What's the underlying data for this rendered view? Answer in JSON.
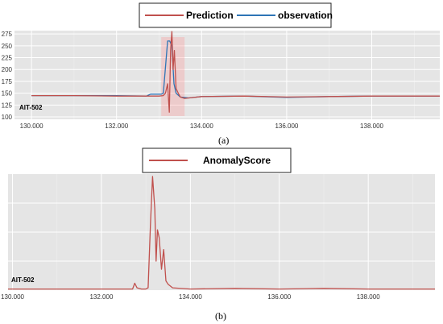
{
  "chart_data": [
    {
      "type": "line",
      "caption": "(a)",
      "sensor_label": "AIT-502",
      "legend": [
        "Prediction",
        "observation"
      ],
      "colors": {
        "Prediction": "#c0504d",
        "observation": "#2e75b6",
        "highlight": "#ff8a8a"
      },
      "xlim": [
        129600,
        139600
      ],
      "ylim": [
        95,
        282
      ],
      "xticks": [
        130000,
        132000,
        134000,
        136000,
        138000
      ],
      "xtick_labels": [
        "130.000",
        "132.000",
        "134.000",
        "136.000",
        "138.000"
      ],
      "yticks": [
        100,
        125,
        150,
        175,
        200,
        225,
        250,
        275
      ],
      "ytick_labels": [
        "100",
        "125",
        "150",
        "175",
        "200",
        "225",
        "250",
        "275"
      ],
      "grid": true,
      "legend_position": "top",
      "series": [
        {
          "name": "Prediction",
          "x": [
            130000,
            131000,
            132000,
            132700,
            133000,
            133100,
            133150,
            133200,
            133240,
            133270,
            133300,
            133330,
            133360,
            133400,
            133450,
            133500,
            133600,
            134000,
            135000,
            136000,
            137000,
            138000,
            139600
          ],
          "y": [
            145,
            145,
            144,
            144,
            144,
            145,
            150,
            170,
            110,
            240,
            280,
            200,
            240,
            160,
            150,
            142,
            139,
            143,
            144,
            142,
            143,
            144,
            144
          ]
        },
        {
          "name": "observation",
          "x": [
            130000,
            131000,
            132000,
            132700,
            132800,
            133000,
            133050,
            133100,
            133200,
            133250,
            133300,
            133350,
            133400,
            133500,
            133700,
            134000,
            135000,
            136000,
            137000,
            138000,
            139600
          ],
          "y": [
            145,
            145,
            145,
            144,
            148,
            148,
            148,
            150,
            260,
            260,
            250,
            170,
            150,
            142,
            140,
            143,
            144,
            141,
            143,
            144,
            144
          ]
        }
      ]
    },
    {
      "type": "line",
      "caption": "(b)",
      "sensor_label": "AIT-502",
      "legend": [
        "AnomalyScore"
      ],
      "colors": {
        "AnomalyScore": "#c0504d"
      },
      "xlim": [
        129900,
        139500
      ],
      "ylim": [
        0,
        1
      ],
      "xticks": [
        130000,
        132000,
        134000,
        136000,
        138000
      ],
      "xtick_labels": [
        "130.000",
        "132.000",
        "134.000",
        "136.000",
        "138.000"
      ],
      "grid": true,
      "legend_position": "top",
      "series": [
        {
          "name": "AnomalyScore",
          "x": [
            129900,
            131000,
            132000,
            132700,
            132750,
            132800,
            132900,
            133000,
            133050,
            133100,
            133150,
            133200,
            133230,
            133260,
            133300,
            133350,
            133400,
            133450,
            133500,
            133600,
            134000,
            135000,
            136000,
            137000,
            138000,
            139500
          ],
          "y": [
            0.01,
            0.01,
            0.01,
            0.01,
            0.06,
            0.02,
            0.01,
            0.01,
            0.02,
            0.55,
            0.98,
            0.7,
            0.25,
            0.52,
            0.45,
            0.18,
            0.35,
            0.08,
            0.05,
            0.02,
            0.01,
            0.015,
            0.01,
            0.015,
            0.01,
            0.01
          ]
        }
      ]
    }
  ]
}
